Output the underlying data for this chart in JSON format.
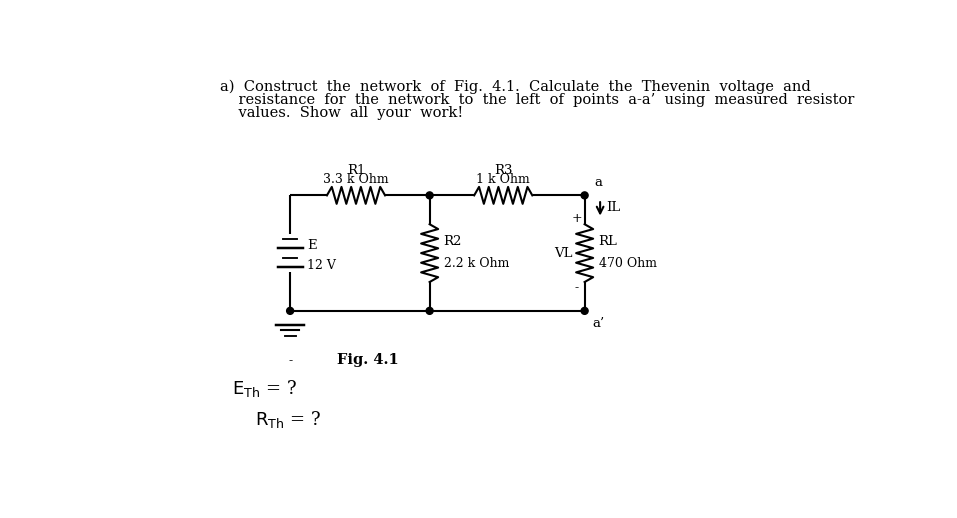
{
  "background_color": "#ffffff",
  "line_color": "#000000",
  "line_width": 1.5,
  "font_family": "DejaVu Serif",
  "main_text_line1": "a)  Construct  the  network  of  Fig.  4.1.  Calculate  the  Thevenin  voltage  and",
  "main_text_line2": "    resistance  for  the  network  to  the  left  of  points  a-a’  using  measured  resistor",
  "main_text_line3": "    values.  Show  all  your  work!",
  "fig_label": "Fig. 4.1",
  "R1_label": "R1",
  "R1_val": "3.3 k Ohm",
  "R2_label": "R2",
  "R2_val": "2.2 k Ohm",
  "R3_label": "R3",
  "R3_val": "1 k Ohm",
  "RL_label": "RL",
  "RL_val": "470 Ohm",
  "E_label": "E",
  "E_val": "12 V",
  "IL_label": "IL",
  "VL_label": "VL",
  "a_label": "a",
  "a_prime_label": "a’",
  "plus_label": "+",
  "minus_label": "-",
  "neg_label": "-"
}
